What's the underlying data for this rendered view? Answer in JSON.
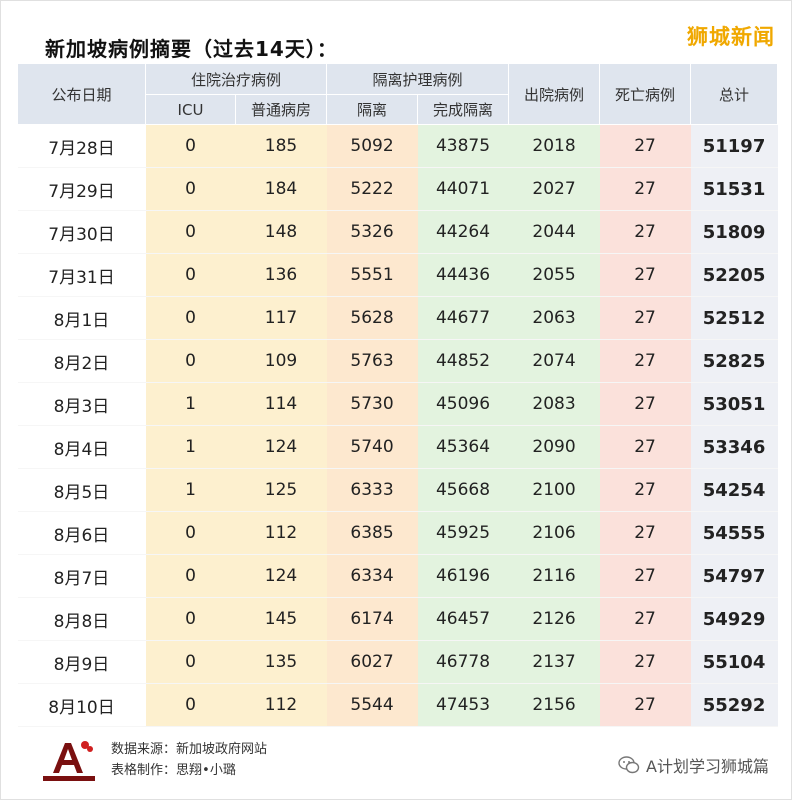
{
  "title": "新加坡病例摘要（过去14天）：",
  "brand": "狮城新闻",
  "headers": {
    "date": "公布日期",
    "hospital_group": "住院治疗病例",
    "icu": "ICU",
    "ward": "普通病房",
    "isolation_group": "隔离护理病例",
    "isolation": "隔离",
    "done_isolation": "完成隔离",
    "discharged": "出院病例",
    "deaths": "死亡病例",
    "total": "总计"
  },
  "rows": [
    {
      "date": "7月28日",
      "icu": "0",
      "ward": "185",
      "iso": "5092",
      "done": "43875",
      "disch": "2018",
      "death": "27",
      "total": "51197"
    },
    {
      "date": "7月29日",
      "icu": "0",
      "ward": "184",
      "iso": "5222",
      "done": "44071",
      "disch": "2027",
      "death": "27",
      "total": "51531"
    },
    {
      "date": "7月30日",
      "icu": "0",
      "ward": "148",
      "iso": "5326",
      "done": "44264",
      "disch": "2044",
      "death": "27",
      "total": "51809"
    },
    {
      "date": "7月31日",
      "icu": "0",
      "ward": "136",
      "iso": "5551",
      "done": "44436",
      "disch": "2055",
      "death": "27",
      "total": "52205"
    },
    {
      "date": "8月1日",
      "icu": "0",
      "ward": "117",
      "iso": "5628",
      "done": "44677",
      "disch": "2063",
      "death": "27",
      "total": "52512"
    },
    {
      "date": "8月2日",
      "icu": "0",
      "ward": "109",
      "iso": "5763",
      "done": "44852",
      "disch": "2074",
      "death": "27",
      "total": "52825"
    },
    {
      "date": "8月3日",
      "icu": "1",
      "ward": "114",
      "iso": "5730",
      "done": "45096",
      "disch": "2083",
      "death": "27",
      "total": "53051"
    },
    {
      "date": "8月4日",
      "icu": "1",
      "ward": "124",
      "iso": "5740",
      "done": "45364",
      "disch": "2090",
      "death": "27",
      "total": "53346"
    },
    {
      "date": "8月5日",
      "icu": "1",
      "ward": "125",
      "iso": "6333",
      "done": "45668",
      "disch": "2100",
      "death": "27",
      "total": "54254"
    },
    {
      "date": "8月6日",
      "icu": "0",
      "ward": "112",
      "iso": "6385",
      "done": "45925",
      "disch": "2106",
      "death": "27",
      "total": "54555"
    },
    {
      "date": "8月7日",
      "icu": "0",
      "ward": "124",
      "iso": "6334",
      "done": "46196",
      "disch": "2116",
      "death": "27",
      "total": "54797"
    },
    {
      "date": "8月8日",
      "icu": "0",
      "ward": "145",
      "iso": "6174",
      "done": "46457",
      "disch": "2126",
      "death": "27",
      "total": "54929"
    },
    {
      "date": "8月9日",
      "icu": "0",
      "ward": "135",
      "iso": "6027",
      "done": "46778",
      "disch": "2137",
      "death": "27",
      "total": "55104"
    },
    {
      "date": "8月10日",
      "icu": "0",
      "ward": "112",
      "iso": "5544",
      "done": "47453",
      "disch": "2156",
      "death": "27",
      "total": "55292"
    }
  ],
  "footer": {
    "source": "数据来源：新加坡政府网站",
    "maker": "表格制作：思翔•小璐",
    "wechat": "A计划学习狮城篇",
    "logo_icon": "a-plan-logo-icon",
    "wechat_icon": "wechat-icon"
  },
  "colors": {
    "brand": "#f0a800",
    "header_bg": "#dfe5ee",
    "hospital_bg": "#fdf0cf",
    "isolation_bg": "#fde8cf",
    "done_bg": "#e3f3df",
    "death_bg": "#fbe1db",
    "total_bg": "#eef0f5"
  }
}
